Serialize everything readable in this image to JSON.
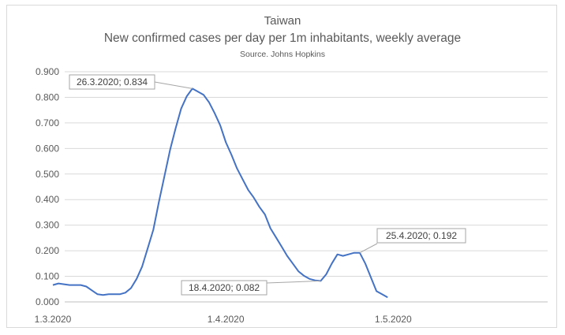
{
  "chart_data": {
    "type": "line",
    "title": "Taiwan",
    "subtitle": "New confirmed cases per day per 1m inhabitants, weekly average",
    "source": "Source. Johns Hopkins",
    "xlabel": "",
    "ylabel": "",
    "ylim": [
      0,
      0.9
    ],
    "yticks": [
      "0.000",
      "0.100",
      "0.200",
      "0.300",
      "0.400",
      "0.500",
      "0.600",
      "0.700",
      "0.800",
      "0.900"
    ],
    "xticks": [
      "1.3.2020",
      "1.4.2020",
      "1.5.2020"
    ],
    "grid": true,
    "series": [
      {
        "color": "#4472c4",
        "x": [
          "1.3.2020",
          "2.3.2020",
          "3.3.2020",
          "4.3.2020",
          "5.3.2020",
          "6.3.2020",
          "7.3.2020",
          "8.3.2020",
          "9.3.2020",
          "10.3.2020",
          "11.3.2020",
          "12.3.2020",
          "13.3.2020",
          "14.3.2020",
          "15.3.2020",
          "16.3.2020",
          "17.3.2020",
          "18.3.2020",
          "19.3.2020",
          "20.3.2020",
          "21.3.2020",
          "22.3.2020",
          "23.3.2020",
          "24.3.2020",
          "25.3.2020",
          "26.3.2020",
          "27.3.2020",
          "28.3.2020",
          "29.3.2020",
          "30.3.2020",
          "31.3.2020",
          "1.4.2020",
          "2.4.2020",
          "3.4.2020",
          "4.4.2020",
          "5.4.2020",
          "6.4.2020",
          "7.4.2020",
          "8.4.2020",
          "9.4.2020",
          "10.4.2020",
          "11.4.2020",
          "12.4.2020",
          "13.4.2020",
          "14.4.2020",
          "15.4.2020",
          "16.4.2020",
          "17.4.2020",
          "18.4.2020",
          "19.4.2020",
          "20.4.2020",
          "21.4.2020",
          "22.4.2020",
          "23.4.2020",
          "24.4.2020",
          "25.4.2020",
          "26.4.2020",
          "27.4.2020",
          "28.4.2020",
          "29.4.2020",
          "30.4.2020"
        ],
        "values": [
          0.066,
          0.072,
          0.069,
          0.066,
          0.066,
          0.066,
          0.06,
          0.045,
          0.03,
          0.027,
          0.03,
          0.03,
          0.03,
          0.036,
          0.054,
          0.09,
          0.138,
          0.21,
          0.282,
          0.39,
          0.492,
          0.594,
          0.678,
          0.756,
          0.804,
          0.834,
          0.822,
          0.81,
          0.78,
          0.738,
          0.69,
          0.624,
          0.576,
          0.522,
          0.48,
          0.438,
          0.408,
          0.372,
          0.342,
          0.288,
          0.252,
          0.216,
          0.18,
          0.15,
          0.12,
          0.102,
          0.09,
          0.084,
          0.082,
          0.108,
          0.15,
          0.186,
          0.18,
          0.186,
          0.192,
          0.192,
          0.15,
          0.096,
          0.042,
          0.03,
          0.018
        ]
      }
    ],
    "annotations": [
      {
        "text": "26.3.2020; 0.834",
        "x": "26.3.2020",
        "y": 0.834
      },
      {
        "text": "18.4.2020; 0.082",
        "x": "18.4.2020",
        "y": 0.082
      },
      {
        "text": "25.4.2020; 0.192",
        "x": "25.4.2020",
        "y": 0.192
      }
    ]
  }
}
